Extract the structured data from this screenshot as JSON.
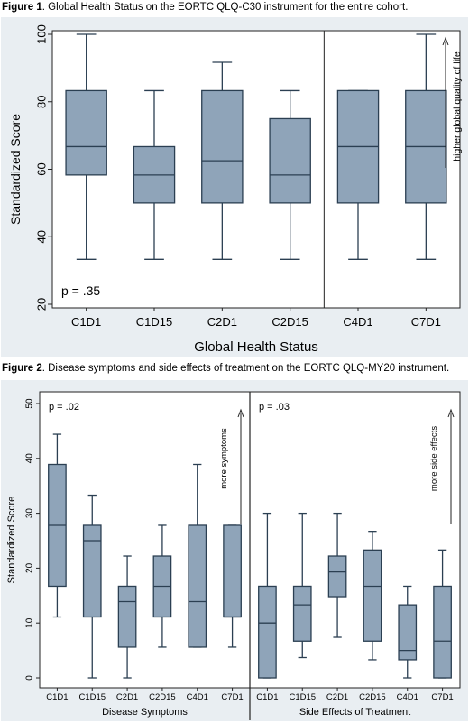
{
  "figure1": {
    "caption_label": "Figure 1",
    "caption_text": ". Global Health Status on the EORTC QLQ-C30 instrument for the entire cohort."
  },
  "figure2": {
    "caption_label": "Figure 2",
    "caption_text": ". Disease symptoms and side effects of treatment on the EORTC QLQ-MY20 instrument."
  },
  "colors": {
    "box_fill": "#8fa4b9",
    "box_stroke": "#2b3f52",
    "plot_bg": "#ffffff",
    "panel_bg": "#e9eef2"
  },
  "chart_data": [
    {
      "type": "box",
      "xlabel": "Global Health Status",
      "ylabel": "Standardized Score",
      "ylim": [
        20,
        100
      ],
      "yticks": [
        20,
        40,
        60,
        80,
        100
      ],
      "annotation": "p = .35",
      "arrow_label": "higher global quality of life",
      "separator_after": "C2D15",
      "categories": [
        "C1D1",
        "C1D15",
        "C2D1",
        "C2D15",
        "C4D1",
        "C7D1"
      ],
      "boxes": [
        {
          "min": 33.3,
          "q1": 58.3,
          "median": 66.7,
          "q3": 83.3,
          "max": 100
        },
        {
          "min": 33.3,
          "q1": 50,
          "median": 58.3,
          "q3": 66.7,
          "max": 83.3
        },
        {
          "min": 33.3,
          "q1": 50,
          "median": 62.5,
          "q3": 83.3,
          "max": 91.7
        },
        {
          "min": 33.3,
          "q1": 50,
          "median": 58.3,
          "q3": 75,
          "max": 83.3
        },
        {
          "min": 33.3,
          "q1": 50,
          "median": 66.7,
          "q3": 83.3,
          "max": 83.3
        },
        {
          "min": 33.3,
          "q1": 50,
          "median": 66.7,
          "q3": 83.3,
          "max": 100
        }
      ]
    },
    {
      "type": "box",
      "ylabel": "Standardized Score",
      "ylim": [
        0,
        50
      ],
      "yticks": [
        0,
        10,
        20,
        30,
        40,
        50
      ],
      "groups": [
        {
          "xlabel": "Disease Symptoms",
          "annotation": "p = .02",
          "arrow_label": "more symptoms",
          "categories": [
            "C1D1",
            "C1D15",
            "C2D1",
            "C2D15",
            "C4D1",
            "C7D1"
          ],
          "boxes": [
            {
              "min": 11.1,
              "q1": 16.7,
              "median": 27.8,
              "q3": 38.9,
              "max": 44.4
            },
            {
              "min": 0,
              "q1": 11.1,
              "median": 25,
              "q3": 27.8,
              "max": 33.3
            },
            {
              "min": 0,
              "q1": 5.6,
              "median": 13.9,
              "q3": 16.7,
              "max": 22.2
            },
            {
              "min": 5.6,
              "q1": 11.1,
              "median": 16.7,
              "q3": 22.2,
              "max": 27.8
            },
            {
              "min": 5.6,
              "q1": 5.6,
              "median": 13.9,
              "q3": 27.8,
              "max": 38.9
            },
            {
              "min": 5.6,
              "q1": 11.1,
              "median": 11.1,
              "q3": 27.8,
              "max": 27.8
            }
          ]
        },
        {
          "xlabel": "Side Effects of Treatment",
          "annotation": "p = .03",
          "arrow_label": "more side effects",
          "categories": [
            "C1D1",
            "C1D15",
            "C2D1",
            "C2D15",
            "C4D1",
            "C7D1"
          ],
          "boxes": [
            {
              "min": 0,
              "q1": 0,
              "median": 10,
              "q3": 16.7,
              "max": 30
            },
            {
              "min": 3.7,
              "q1": 6.7,
              "median": 13.3,
              "q3": 16.7,
              "max": 30
            },
            {
              "min": 7.4,
              "q1": 14.8,
              "median": 19.3,
              "q3": 22.2,
              "max": 30
            },
            {
              "min": 3.3,
              "q1": 6.7,
              "median": 16.7,
              "q3": 23.3,
              "max": 26.7
            },
            {
              "min": 0,
              "q1": 3.3,
              "median": 5,
              "q3": 13.3,
              "max": 16.7
            },
            {
              "min": 0,
              "q1": 0,
              "median": 6.7,
              "q3": 16.7,
              "max": 23.3
            }
          ]
        }
      ]
    }
  ]
}
